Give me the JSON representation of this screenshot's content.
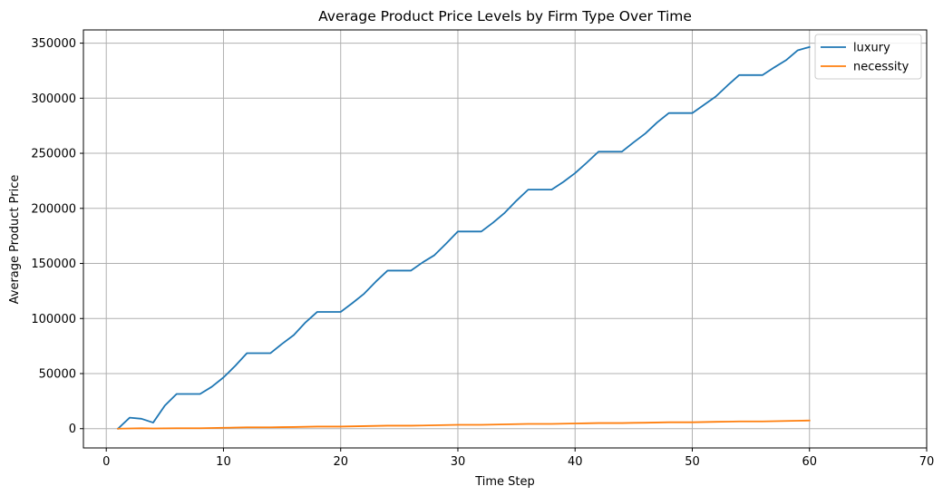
{
  "chart_data": {
    "type": "line",
    "title": "Average Product Price Levels by Firm Type Over Time",
    "xlabel": "Time Step",
    "ylabel": "Average Product Price",
    "xlim": [
      -1.95,
      70
    ],
    "ylim": [
      -17500,
      362000
    ],
    "x_ticks": [
      0,
      10,
      20,
      30,
      40,
      50,
      60,
      70
    ],
    "x_tick_labels": [
      "0",
      "10",
      "20",
      "30",
      "40",
      "50",
      "60",
      "70"
    ],
    "y_ticks": [
      0,
      50000,
      100000,
      150000,
      200000,
      250000,
      300000,
      350000
    ],
    "y_tick_labels": [
      "0",
      "50000",
      "100000",
      "150000",
      "200000",
      "250000",
      "300000",
      "350000"
    ],
    "grid": true,
    "legend_position": "top-right",
    "x": [
      1,
      2,
      3,
      4,
      5,
      6,
      7,
      8,
      9,
      10,
      11,
      12,
      13,
      14,
      15,
      16,
      17,
      18,
      19,
      20,
      21,
      22,
      23,
      24,
      25,
      26,
      27,
      28,
      29,
      30,
      31,
      32,
      33,
      34,
      35,
      36,
      37,
      38,
      39,
      40,
      41,
      42,
      43,
      44,
      45,
      46,
      47,
      48,
      49,
      50,
      51,
      52,
      53,
      54,
      55,
      56,
      57,
      58,
      59,
      60
    ],
    "series": [
      {
        "name": "luxury",
        "color": "#1f77b4",
        "values": [
          0,
          10000,
          9000,
          5500,
          21000,
          31500,
          31500,
          31500,
          38000,
          46500,
          57000,
          68500,
          68500,
          68500,
          77000,
          85000,
          96500,
          106000,
          106000,
          106000,
          114000,
          122500,
          133500,
          143500,
          143500,
          143500,
          151000,
          157500,
          168000,
          179000,
          179000,
          179000,
          187000,
          196000,
          207000,
          217000,
          217000,
          217000,
          224000,
          232000,
          241500,
          251500,
          251500,
          251500,
          260000,
          268000,
          278000,
          286500,
          286500,
          286500,
          294000,
          301500,
          311500,
          321000,
          321000,
          321000,
          328000,
          334500,
          343500,
          346500
        ]
      },
      {
        "name": "necessity",
        "color": "#ff7f0e",
        "values": [
          0,
          200,
          400,
          200,
          300,
          400,
          400,
          400,
          600,
          800,
          1000,
          1200,
          1200,
          1200,
          1400,
          1500,
          1700,
          1900,
          1900,
          1900,
          2100,
          2300,
          2500,
          2700,
          2700,
          2700,
          2900,
          3100,
          3300,
          3500,
          3500,
          3500,
          3700,
          3900,
          4100,
          4300,
          4300,
          4300,
          4500,
          4700,
          4900,
          5100,
          5100,
          5100,
          5300,
          5400,
          5600,
          5800,
          5800,
          5800,
          6000,
          6200,
          6400,
          6600,
          6600,
          6600,
          6800,
          7000,
          7200,
          7400
        ]
      }
    ]
  }
}
